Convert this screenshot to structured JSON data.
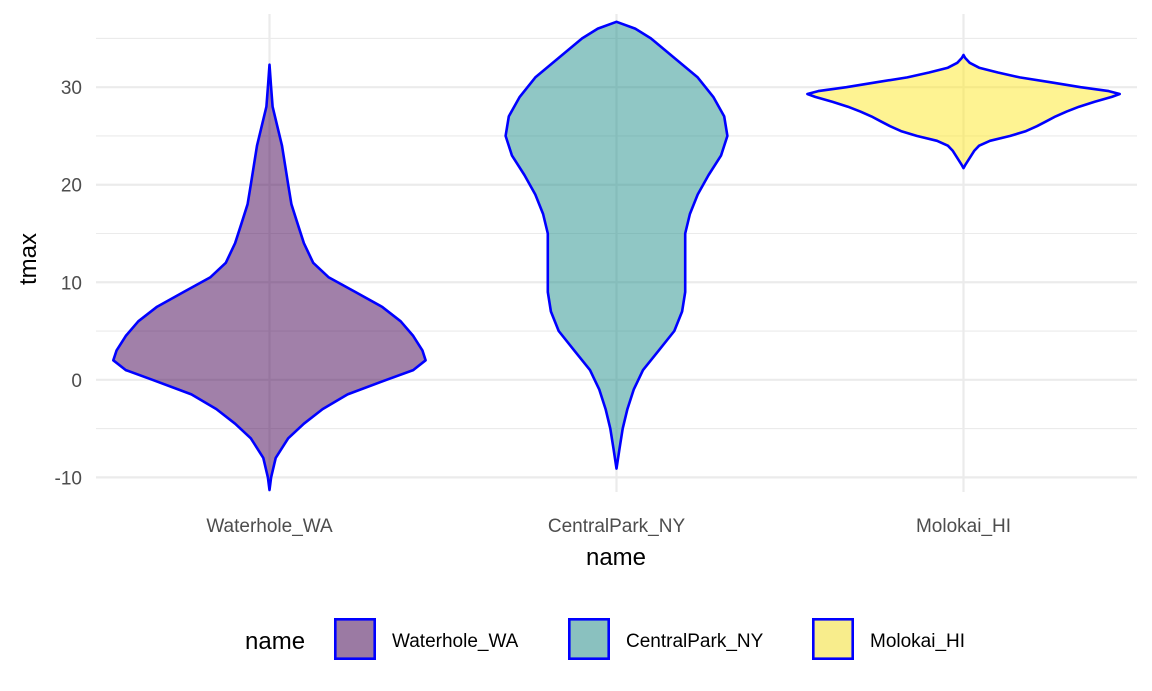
{
  "chart_data": {
    "type": "violin",
    "xlabel": "name",
    "ylabel": "tmax",
    "ylim": [
      -11.5,
      37.5
    ],
    "y_ticks": [
      -10,
      0,
      10,
      20,
      30
    ],
    "y_tick_labels": [
      "-10",
      "0",
      "10",
      "20",
      "30"
    ],
    "grid": true,
    "legend": {
      "title": "name",
      "position": "bottom"
    },
    "outline_color": "#0000ff",
    "fill_opacity": 0.5,
    "series": [
      {
        "name": "Waterhole_WA",
        "color": "#440154",
        "min": -11.3,
        "max": 32.3,
        "density": [
          [
            -11.3,
            0.0
          ],
          [
            -10.0,
            0.01
          ],
          [
            -8.0,
            0.04
          ],
          [
            -6.0,
            0.12
          ],
          [
            -4.5,
            0.22
          ],
          [
            -3.0,
            0.34
          ],
          [
            -1.5,
            0.5
          ],
          [
            0.0,
            0.75
          ],
          [
            1.0,
            0.92
          ],
          [
            2.0,
            1.0
          ],
          [
            3.0,
            0.98
          ],
          [
            4.5,
            0.92
          ],
          [
            6.0,
            0.84
          ],
          [
            7.5,
            0.72
          ],
          [
            9.0,
            0.55
          ],
          [
            10.5,
            0.38
          ],
          [
            12.0,
            0.28
          ],
          [
            14.0,
            0.22
          ],
          [
            16.0,
            0.18
          ],
          [
            18.0,
            0.14
          ],
          [
            20.0,
            0.12
          ],
          [
            22.0,
            0.1
          ],
          [
            24.0,
            0.08
          ],
          [
            26.0,
            0.05
          ],
          [
            28.0,
            0.02
          ],
          [
            30.0,
            0.01
          ],
          [
            32.3,
            0.0
          ]
        ]
      },
      {
        "name": "CentralPark_NY",
        "color": "#21908c",
        "min": -9.1,
        "max": 36.7,
        "density": [
          [
            -9.1,
            0.0
          ],
          [
            -7.0,
            0.02
          ],
          [
            -5.0,
            0.04
          ],
          [
            -3.0,
            0.07
          ],
          [
            -1.0,
            0.11
          ],
          [
            1.0,
            0.17
          ],
          [
            3.0,
            0.27
          ],
          [
            5.0,
            0.37
          ],
          [
            7.0,
            0.42
          ],
          [
            9.0,
            0.44
          ],
          [
            11.0,
            0.44
          ],
          [
            13.0,
            0.44
          ],
          [
            15.0,
            0.44
          ],
          [
            17.0,
            0.47
          ],
          [
            19.0,
            0.52
          ],
          [
            21.0,
            0.59
          ],
          [
            23.0,
            0.67
          ],
          [
            25.0,
            0.71
          ],
          [
            27.0,
            0.69
          ],
          [
            29.0,
            0.62
          ],
          [
            31.0,
            0.52
          ],
          [
            33.0,
            0.37
          ],
          [
            35.0,
            0.22
          ],
          [
            36.0,
            0.12
          ],
          [
            36.7,
            0.0
          ]
        ]
      },
      {
        "name": "Molokai_HI",
        "color": "#fde725",
        "min": 21.7,
        "max": 33.3,
        "density": [
          [
            21.7,
            0.0
          ],
          [
            22.0,
            0.01
          ],
          [
            22.5,
            0.03
          ],
          [
            23.0,
            0.05
          ],
          [
            23.5,
            0.07
          ],
          [
            24.0,
            0.1
          ],
          [
            24.5,
            0.17
          ],
          [
            25.0,
            0.3
          ],
          [
            25.5,
            0.4
          ],
          [
            26.0,
            0.47
          ],
          [
            26.5,
            0.53
          ],
          [
            27.0,
            0.59
          ],
          [
            27.5,
            0.66
          ],
          [
            28.0,
            0.74
          ],
          [
            28.5,
            0.84
          ],
          [
            29.0,
            0.95
          ],
          [
            29.3,
            1.0
          ],
          [
            29.6,
            0.93
          ],
          [
            30.0,
            0.75
          ],
          [
            30.5,
            0.56
          ],
          [
            31.0,
            0.36
          ],
          [
            31.5,
            0.22
          ],
          [
            32.0,
            0.1
          ],
          [
            32.5,
            0.04
          ],
          [
            33.0,
            0.01
          ],
          [
            33.3,
            0.0
          ]
        ]
      }
    ]
  }
}
